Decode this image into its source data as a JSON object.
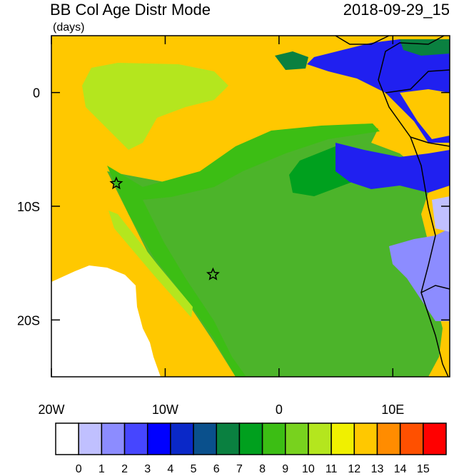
{
  "chart_data": {
    "type": "map",
    "title": "BB Col Age Distr Mode",
    "subtitle": "(days)",
    "date": "2018-09-29_15",
    "xlim": [
      -20,
      15
    ],
    "ylim": [
      -25,
      5
    ],
    "xticks": [
      {
        "value": -20,
        "label": "20W"
      },
      {
        "value": -10,
        "label": "10W"
      },
      0,
      {
        "value": 10,
        "label": "10E"
      }
    ],
    "yticks": [
      0,
      {
        "value": -10,
        "label": "10S"
      },
      {
        "value": -20,
        "label": "20S"
      }
    ],
    "markers": {
      "lon": [
        -14.3,
        -5.8
      ],
      "lat": [
        -8,
        -16
      ]
    },
    "colorbar": {
      "colors": [
        "#ffffff",
        "#c0c0ff",
        "#8c8cff",
        "#4646ff",
        "#0000ff",
        "#0a28c8",
        "#0a508c",
        "#0a8040",
        "#00a01e",
        "#3cbe14",
        "#78d21e",
        "#b4e61e",
        "#f0f000",
        "#ffc800",
        "#ff8c00",
        "#ff5000",
        "#ff0000"
      ],
      "levels": [
        0,
        1,
        2,
        3,
        4,
        5,
        6,
        7,
        8,
        9,
        10,
        11,
        12,
        13,
        14,
        15
      ]
    }
  }
}
